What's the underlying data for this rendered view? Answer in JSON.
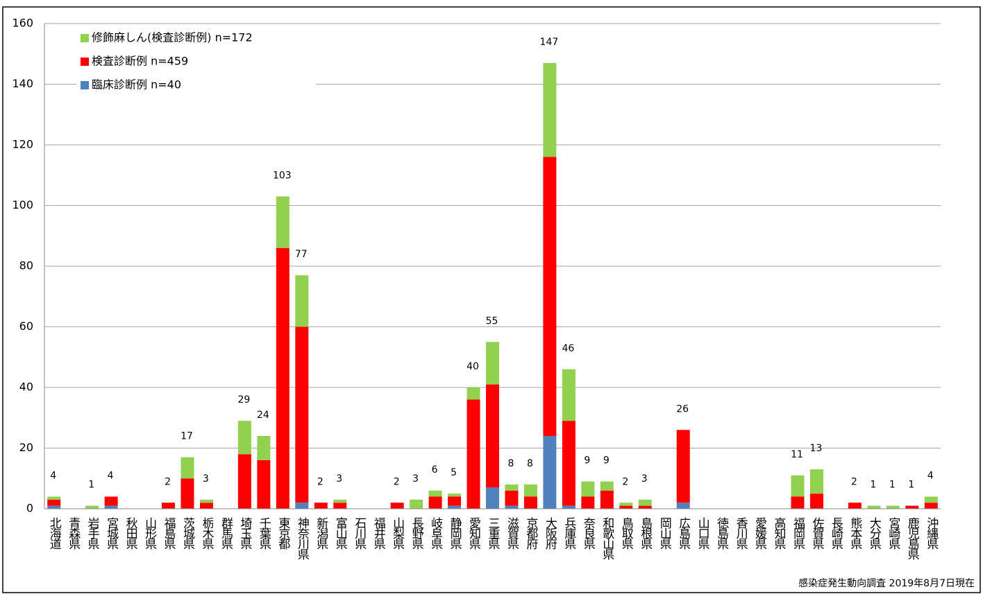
{
  "chart_data": {
    "type": "stacked_bar",
    "categories": [
      "北海道",
      "青森県",
      "岩手県",
      "宮城県",
      "秋田県",
      "山形県",
      "福島県",
      "茨城県",
      "栃木県",
      "群馬県",
      "埼玉県",
      "千葉県",
      "東京都",
      "神奈川県",
      "新潟県",
      "富山県",
      "石川県",
      "福井県",
      "山梨県",
      "長野県",
      "岐阜県",
      "静岡県",
      "愛知県",
      "三重県",
      "滋賀県",
      "京都府",
      "大阪府",
      "兵庫県",
      "奈良県",
      "和歌山県",
      "鳥取県",
      "島根県",
      "岡山県",
      "広島県",
      "山口県",
      "徳島県",
      "香川県",
      "愛媛県",
      "高知県",
      "福岡県",
      "佐賀県",
      "長崎県",
      "熊本県",
      "大分県",
      "宮崎県",
      "鹿児島県",
      "沖縄県"
    ],
    "series": [
      {
        "name": "臨床診断例 n=40",
        "color": "#4f81bd",
        "values": [
          1,
          0,
          0,
          1,
          0,
          0,
          0,
          0,
          0,
          0,
          0,
          0,
          0,
          2,
          0,
          0,
          0,
          0,
          0,
          0,
          0,
          1,
          0,
          7,
          1,
          0,
          24,
          1,
          0,
          0,
          0,
          0,
          0,
          2,
          0,
          0,
          0,
          0,
          0,
          0,
          0,
          0,
          0,
          0,
          0,
          0,
          0
        ]
      },
      {
        "name": "検査診断例 n=459",
        "color": "#ff0000",
        "values": [
          2,
          0,
          0,
          3,
          0,
          0,
          2,
          10,
          2,
          0,
          18,
          16,
          86,
          58,
          2,
          2,
          0,
          0,
          2,
          0,
          4,
          3,
          36,
          34,
          5,
          4,
          92,
          28,
          4,
          6,
          1,
          1,
          0,
          24,
          0,
          0,
          0,
          0,
          0,
          4,
          5,
          0,
          2,
          0,
          0,
          1,
          2
        ]
      },
      {
        "name": "修飾麻しん(検査診断例) n=172",
        "color": "#92d050",
        "values": [
          1,
          0,
          1,
          0,
          0,
          0,
          0,
          7,
          1,
          0,
          11,
          8,
          17,
          17,
          0,
          1,
          0,
          0,
          0,
          3,
          2,
          1,
          4,
          14,
          2,
          4,
          31,
          17,
          5,
          3,
          1,
          2,
          0,
          0,
          0,
          0,
          0,
          0,
          0,
          7,
          8,
          0,
          0,
          1,
          1,
          0,
          2
        ]
      }
    ],
    "totals": [
      4,
      null,
      1,
      4,
      null,
      null,
      2,
      17,
      3,
      null,
      29,
      24,
      103,
      77,
      2,
      3,
      null,
      null,
      2,
      3,
      6,
      5,
      40,
      55,
      8,
      8,
      147,
      46,
      9,
      9,
      2,
      3,
      null,
      26,
      null,
      null,
      null,
      null,
      null,
      11,
      13,
      null,
      2,
      1,
      1,
      1,
      4
    ],
    "ylim": [
      0,
      160
    ],
    "yticks": [
      0,
      20,
      40,
      60,
      80,
      100,
      120,
      140,
      160
    ],
    "grid": true,
    "source": "感染症発生動向調査 2019年8月7日現在"
  }
}
